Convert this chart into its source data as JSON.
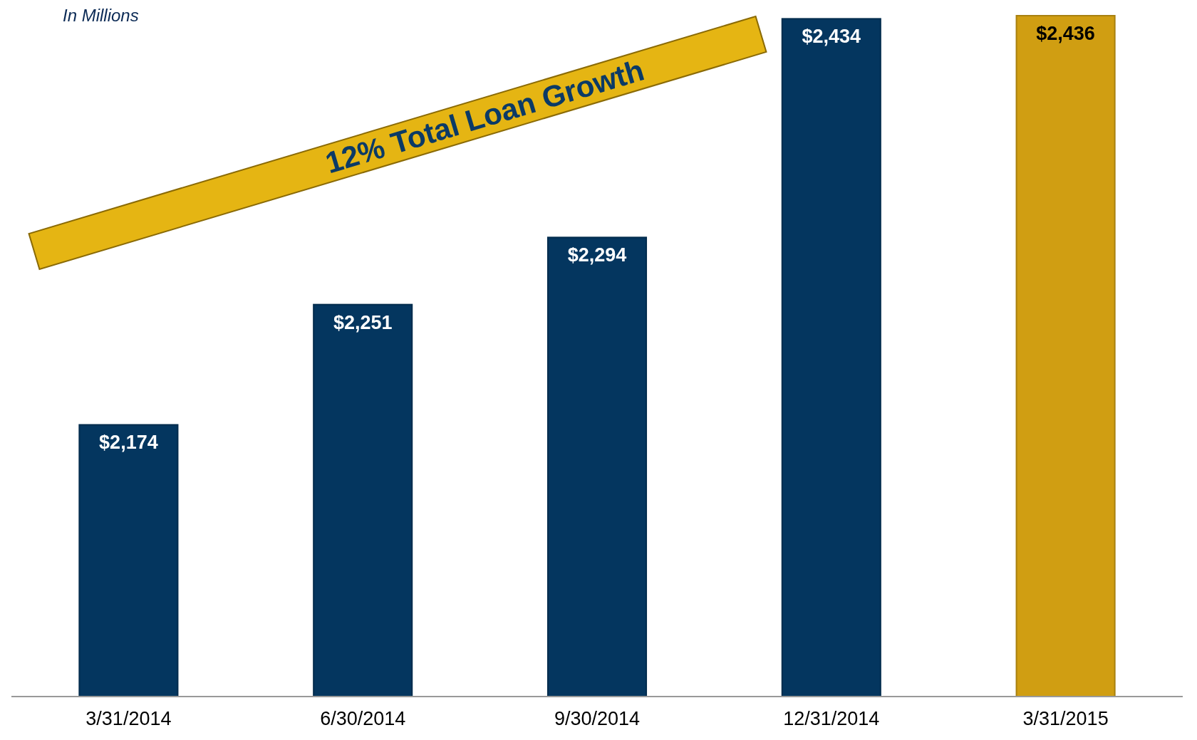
{
  "chart_data": {
    "type": "bar",
    "subtitle": "In Millions",
    "categories": [
      "3/31/2014",
      "6/30/2014",
      "9/30/2014",
      "12/31/2014",
      "3/31/2015"
    ],
    "values": [
      2174,
      2251,
      2294,
      2434,
      2436
    ],
    "value_labels": [
      "$2,174",
      "$2,251",
      "$2,294",
      "$2,434",
      "$2,436"
    ],
    "colors": [
      "#04365f",
      "#04365f",
      "#04365f",
      "#04365f",
      "#d09e12"
    ],
    "ylim": [
      2000,
      2436
    ],
    "tick_labels": "x",
    "annotations": [
      "12% Total Loan Growth"
    ]
  }
}
